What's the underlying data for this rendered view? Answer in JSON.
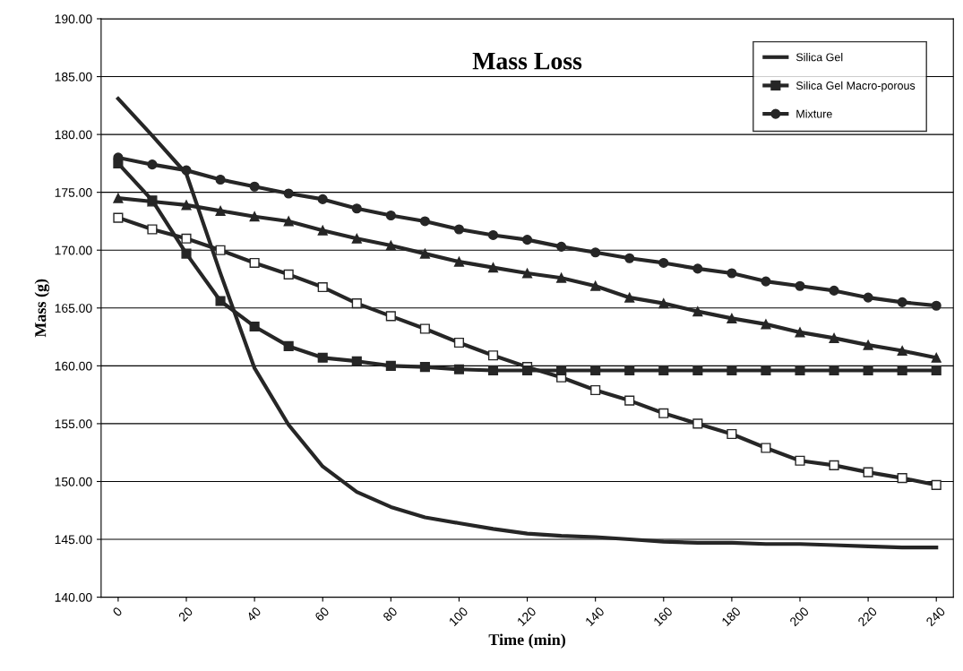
{
  "chart_data": {
    "type": "line",
    "title": "Mass Loss",
    "xlabel": "Time (min)",
    "ylabel": "Mass (g)",
    "x": [
      0,
      10,
      20,
      30,
      40,
      50,
      60,
      70,
      80,
      90,
      100,
      110,
      120,
      130,
      140,
      150,
      160,
      170,
      180,
      190,
      200,
      210,
      220,
      230,
      240
    ],
    "xlim": [
      -5,
      245
    ],
    "xticks": [
      0,
      20,
      40,
      60,
      80,
      100,
      120,
      140,
      160,
      180,
      200,
      220,
      240
    ],
    "ylim": [
      140,
      190
    ],
    "yticks": [
      {
        "value": 140,
        "label": "140.00"
      },
      {
        "value": 145,
        "label": "145.00"
      },
      {
        "value": 150,
        "label": "150.00"
      },
      {
        "value": 155,
        "label": "155.00"
      },
      {
        "value": 160,
        "label": "160.00"
      },
      {
        "value": 165,
        "label": "165.00"
      },
      {
        "value": 170,
        "label": "170.00"
      },
      {
        "value": 175,
        "label": "175.00"
      },
      {
        "value": 180,
        "label": "180.00"
      },
      {
        "value": 185,
        "label": "185.00"
      },
      {
        "value": 190,
        "label": "190.00"
      }
    ],
    "grid": "y",
    "legend": "top right",
    "series": [
      {
        "color": "#262626",
        "marker": "triangle",
        "values": [
          174.5,
          174.2,
          173.9,
          173.4,
          172.9,
          172.5,
          171.7,
          171.0,
          170.4,
          169.7,
          169.0,
          168.5,
          168.0,
          167.6,
          166.9,
          165.9,
          165.4,
          164.7,
          164.1,
          163.6,
          162.9,
          162.4,
          161.8,
          161.3,
          160.7
        ]
      },
      {
        "color": "#262626",
        "marker": "square",
        "values": [
          172.8,
          171.8,
          171.0,
          170.0,
          168.9,
          167.9,
          166.8,
          165.4,
          164.3,
          163.2,
          162.0,
          160.9,
          159.9,
          159.0,
          157.9,
          157.0,
          155.9,
          155.0,
          154.1,
          152.9,
          151.8,
          151.4,
          150.8,
          150.3,
          149.7
        ]
      },
      {
        "name": "Silica Gel",
        "color": "#262626",
        "marker": "none",
        "values": [
          183.1,
          179.9,
          176.6,
          168.0,
          159.8,
          154.9,
          151.3,
          149.1,
          147.8,
          146.9,
          146.4,
          145.9,
          145.5,
          145.3,
          145.2,
          145.0,
          144.8,
          144.7,
          144.7,
          144.6,
          144.6,
          144.5,
          144.4,
          144.3,
          144.3
        ]
      },
      {
        "name": "Silica Gel Macro-porous",
        "color": "#262626",
        "marker": "square",
        "values": [
          177.5,
          174.3,
          169.7,
          165.6,
          163.4,
          161.7,
          160.7,
          160.4,
          160.0,
          159.9,
          159.7,
          159.6,
          159.6,
          159.6,
          159.6,
          159.6,
          159.6,
          159.6,
          159.6,
          159.6,
          159.6,
          159.6,
          159.6,
          159.6,
          159.6
        ]
      },
      {
        "name": "Mixture",
        "color": "#262626",
        "marker": "circle",
        "values": [
          178.0,
          177.4,
          176.9,
          176.1,
          175.5,
          174.9,
          174.4,
          173.6,
          173.0,
          172.5,
          171.8,
          171.3,
          170.9,
          170.3,
          169.8,
          169.3,
          168.9,
          168.4,
          168.0,
          167.3,
          166.9,
          166.5,
          165.9,
          165.5,
          165.2
        ]
      }
    ]
  }
}
